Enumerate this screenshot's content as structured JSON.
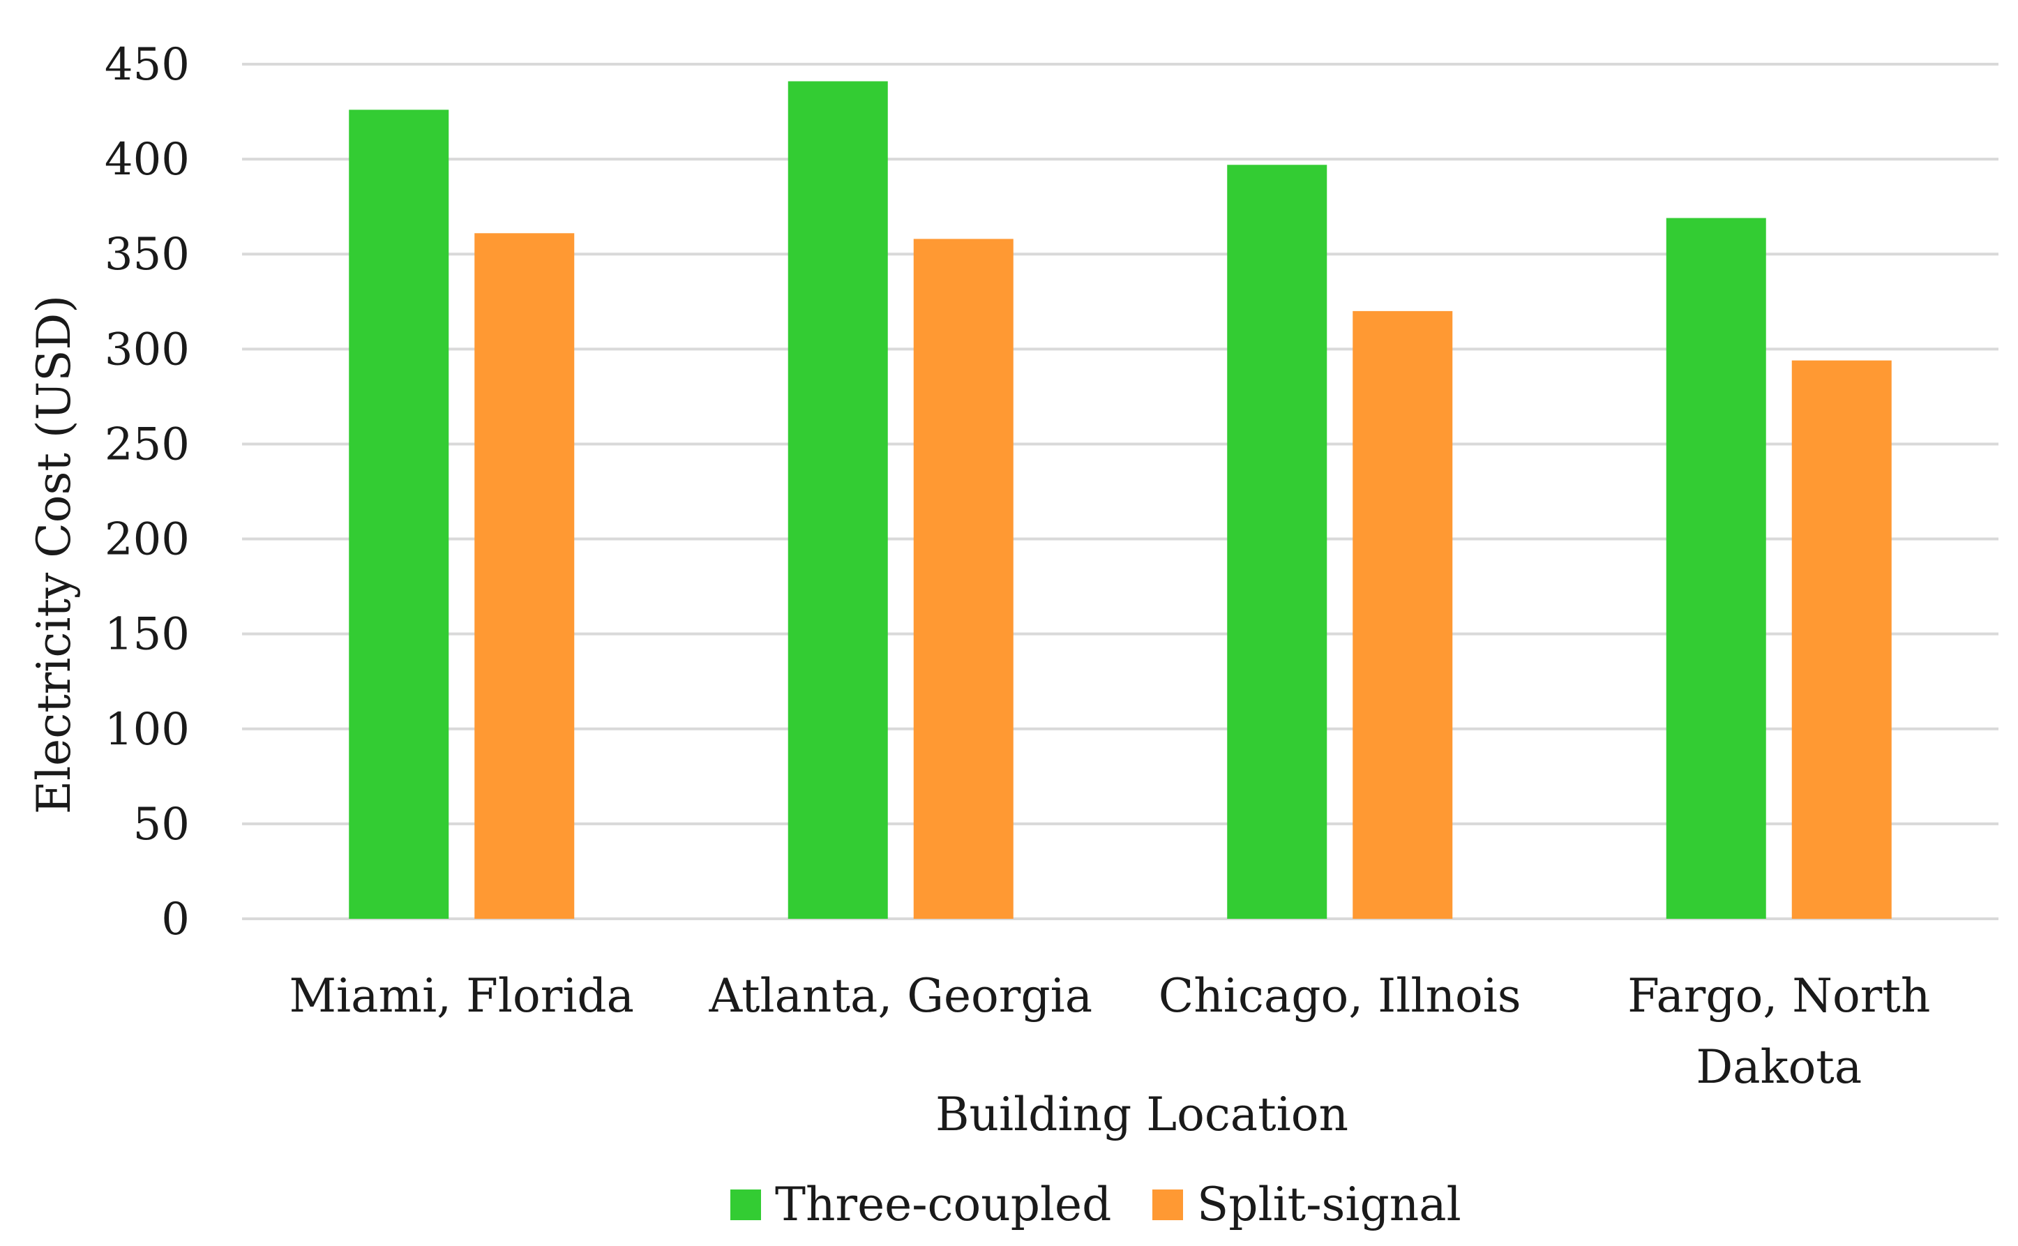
{
  "chart_data": {
    "type": "bar",
    "title": "",
    "xlabel": "Building Location",
    "ylabel": "Electricity Cost (USD)",
    "ylim": [
      0,
      450
    ],
    "yticks": [
      "0",
      "50",
      "100",
      "150",
      "200",
      "250",
      "300",
      "350",
      "400",
      "450"
    ],
    "grid": true,
    "legend_position": "bottom",
    "categories": [
      [
        "Miami, Florida"
      ],
      [
        "Atlanta, Georgia"
      ],
      [
        "Chicago, Illnois"
      ],
      [
        "Fargo, North",
        "Dakota"
      ]
    ],
    "series": [
      {
        "name": "Three-coupled",
        "color": "#33cc33",
        "values": [
          426,
          441,
          397,
          369
        ]
      },
      {
        "name": "Split-signal",
        "color": "#ff9933",
        "values": [
          361,
          358,
          320,
          294
        ]
      }
    ]
  }
}
